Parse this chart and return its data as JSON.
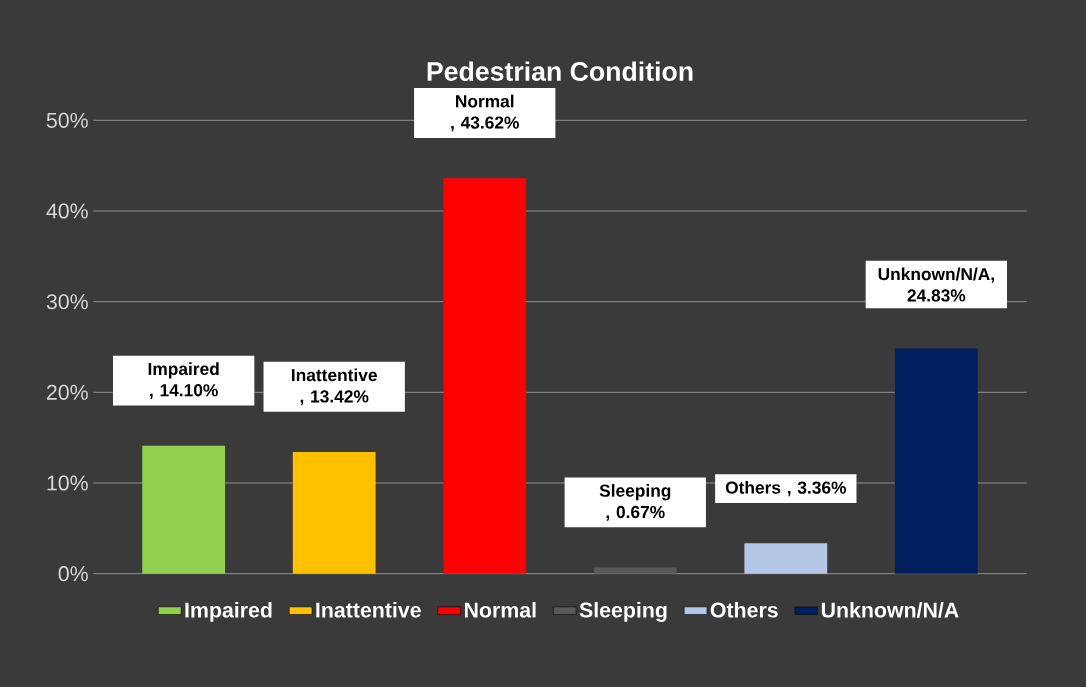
{
  "chart_data": {
    "type": "bar",
    "title": "Pedestrian Condition",
    "categories": [
      null,
      null,
      null,
      null,
      null,
      null
    ],
    "series": [
      {
        "name": "Impaired",
        "color": "#92d050",
        "values": [
          14.1,
          null,
          null,
          null,
          null,
          null
        ],
        "value_labels": [
          "Impaired , 14.10%",
          null,
          null,
          null,
          null,
          null
        ]
      },
      {
        "name": "Inattentive",
        "color": "#ffc000",
        "values": [
          null,
          13.42,
          null,
          null,
          null,
          null
        ],
        "value_labels": [
          null,
          "Inattentive , 13.42%",
          null,
          null,
          null,
          null
        ]
      },
      {
        "name": "Normal",
        "color": "#ff0000",
        "values": [
          null,
          null,
          43.62,
          null,
          null,
          null
        ],
        "value_labels": [
          null,
          null,
          "Normal , 43.62%",
          null,
          null,
          null
        ]
      },
      {
        "name": "Sleeping",
        "color": "#595959",
        "values": [
          null,
          null,
          null,
          0.67,
          null,
          null
        ],
        "value_labels": [
          null,
          null,
          null,
          "Sleeping , 0.67%",
          null,
          null
        ]
      },
      {
        "name": "Others",
        "color": "#b4c7e7",
        "values": [
          null,
          null,
          null,
          null,
          3.36,
          null
        ],
        "value_labels": [
          null,
          null,
          null,
          null,
          "Others , 3.36%",
          null
        ]
      },
      {
        "name": "Unknown/N/A",
        "color": "#002060",
        "values": [
          null,
          null,
          null,
          null,
          null,
          24.83
        ],
        "value_labels": [
          null,
          null,
          null,
          null,
          null,
          "Unknown/N/A, 24.83%"
        ]
      }
    ],
    "ylim": [
      0,
      50
    ],
    "yticks": [
      {
        "value": 0,
        "label": "0%"
      },
      {
        "value": 10,
        "label": "10%"
      },
      {
        "value": 20,
        "label": "20%"
      },
      {
        "value": 30,
        "label": "30%"
      },
      {
        "value": 40,
        "label": "40%"
      },
      {
        "value": 50,
        "label": "50%"
      }
    ],
    "tick_labels": "y",
    "grid": "y",
    "legend": "bottom"
  }
}
